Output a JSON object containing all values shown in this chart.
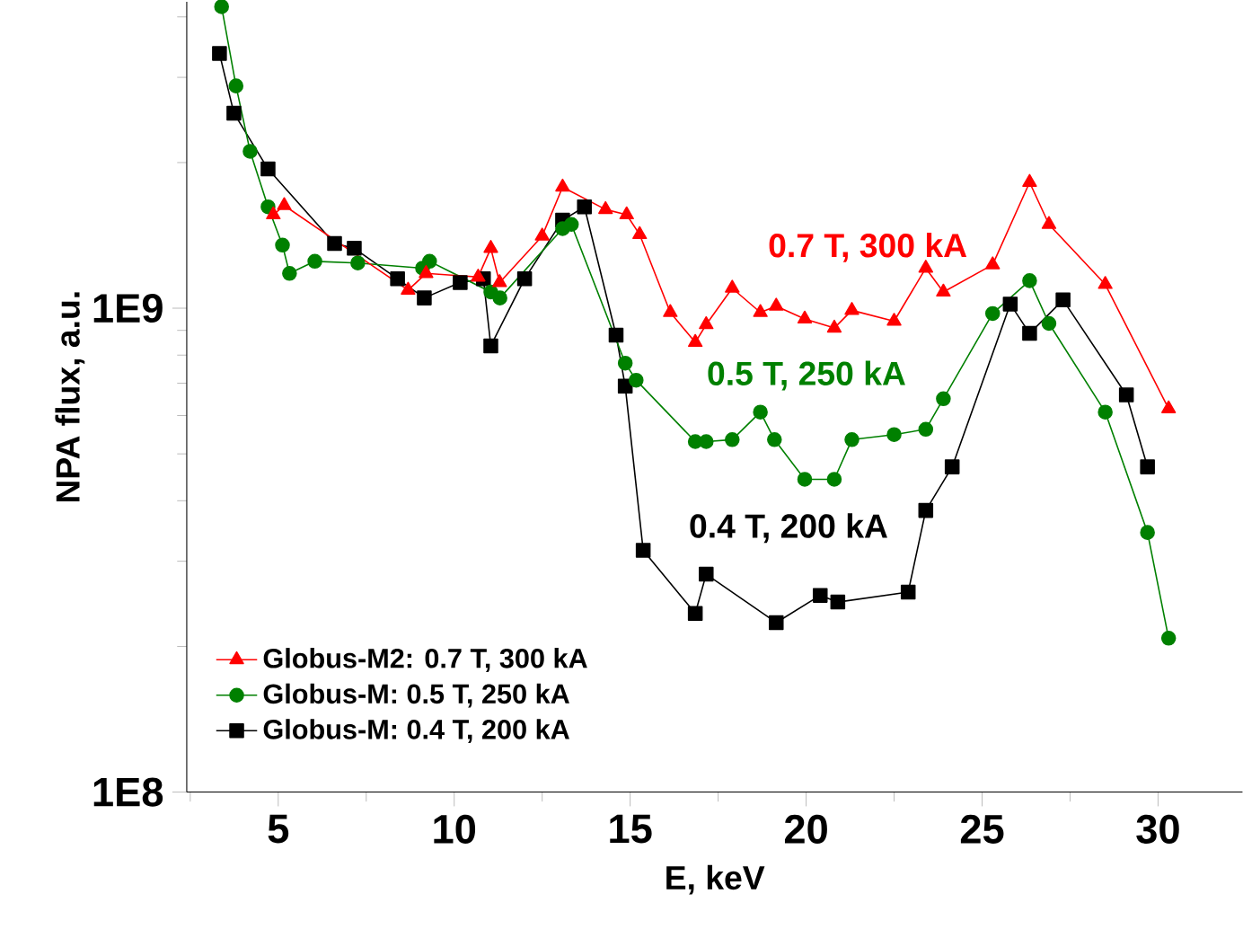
{
  "chart_data": {
    "type": "line",
    "xlabel": "E, keV",
    "ylabel": "NPA flux, a.u.",
    "log": "y",
    "xlim": [
      2.4,
      32.4
    ],
    "ylim": [
      100000000.0,
      4300000000.0
    ],
    "xticks": [
      {
        "value": 2.5,
        "label": null
      },
      5,
      {
        "value": 7.5,
        "label": null
      },
      10,
      {
        "value": 12.5,
        "label": null
      },
      15,
      {
        "value": 17.5,
        "label": null
      },
      20,
      {
        "value": 22.5,
        "label": null
      },
      25,
      {
        "value": 27.5,
        "label": null
      },
      30
    ],
    "yticks": [
      {
        "value": 100000000.0,
        "label": "1E8"
      },
      {
        "value": 200000000.0,
        "label": null
      },
      {
        "value": 300000000.0,
        "label": null
      },
      {
        "value": 400000000.0,
        "label": null
      },
      {
        "value": 500000000.0,
        "label": null
      },
      {
        "value": 600000000.0,
        "label": null
      },
      {
        "value": 700000000.0,
        "label": null
      },
      {
        "value": 800000000.0,
        "label": null
      },
      {
        "value": 900000000.0,
        "label": null
      },
      {
        "value": 1000000000.0,
        "label": "1E9"
      },
      {
        "value": 2000000000.0,
        "label": null
      },
      {
        "value": 3000000000.0,
        "label": null
      },
      {
        "value": 4000000000.0,
        "label": null
      }
    ],
    "legend": "bottom left",
    "grid": false,
    "line_style": "solid",
    "series": [
      {
        "name": "Globus-M2: 0.7 T, 300 kA",
        "color": "#ff0000",
        "marker": "triangle",
        "x": [
          4.86,
          5.17,
          8.69,
          9.2,
          10.68,
          11.04,
          11.29,
          12.5,
          13.08,
          14.3,
          14.9,
          15.27,
          16.14,
          16.85,
          17.16,
          17.9,
          18.7,
          19.15,
          19.96,
          20.8,
          21.3,
          22.5,
          23.4,
          23.9,
          25.3,
          26.35,
          26.9,
          28.5,
          30.3
        ],
        "values": [
          1560000000.0,
          1630000000.0,
          1090000000.0,
          1180000000.0,
          1160000000.0,
          1330000000.0,
          1130000000.0,
          1410000000.0,
          1780000000.0,
          1600000000.0,
          1560000000.0,
          1420000000.0,
          980000000.0,
          850000000.0,
          925000000.0,
          1100000000.0,
          980000000.0,
          1010000000.0,
          950000000.0,
          910000000.0,
          990000000.0,
          940000000.0,
          1210000000.0,
          1080000000.0,
          1230000000.0,
          1820000000.0,
          1490000000.0,
          1120000000.0,
          620000000.0
        ]
      },
      {
        "name": "Globus-M: 0.5 T, 250 kA",
        "color": "#008000",
        "marker": "circle",
        "x": [
          3.39,
          3.8,
          4.2,
          4.71,
          5.12,
          5.32,
          6.04,
          7.26,
          9.1,
          9.3,
          11.04,
          11.3,
          13.08,
          13.33,
          14.86,
          15.17,
          16.85,
          17.16,
          17.9,
          18.7,
          19.1,
          19.96,
          20.8,
          21.3,
          22.5,
          23.4,
          23.9,
          25.3,
          26.35,
          26.9,
          28.5,
          29.7,
          30.3
        ],
        "values": [
          4200000000.0,
          2880000000.0,
          2110000000.0,
          1620000000.0,
          1350000000.0,
          1180000000.0,
          1250000000.0,
          1240000000.0,
          1210000000.0,
          1250000000.0,
          1080000000.0,
          1050000000.0,
          1460000000.0,
          1490000000.0,
          770000000.0,
          710000000.0,
          530000000.0,
          530000000.0,
          535000000.0,
          610000000.0,
          535000000.0,
          443000000.0,
          443000000.0,
          535000000.0,
          548000000.0,
          562000000.0,
          650000000.0,
          975000000.0,
          1140000000.0,
          930000000.0,
          610000000.0,
          344000000.0,
          208000000.0
        ]
      },
      {
        "name": "Globus-M: 0.4 T, 200 kA",
        "color": "#000000",
        "marker": "square",
        "x": [
          3.33,
          3.74,
          4.71,
          6.6,
          7.16,
          8.39,
          9.15,
          10.17,
          10.83,
          11.04,
          12.0,
          13.08,
          13.7,
          14.6,
          14.86,
          15.37,
          16.85,
          17.16,
          19.15,
          20.4,
          20.9,
          22.9,
          23.4,
          24.15,
          25.8,
          26.35,
          27.3,
          29.1,
          29.7
        ],
        "values": [
          3360000000.0,
          2530000000.0,
          1940000000.0,
          1360000000.0,
          1330000000.0,
          1150000000.0,
          1050000000.0,
          1130000000.0,
          1150000000.0,
          836000000.0,
          1150000000.0,
          1520000000.0,
          1620000000.0,
          880000000.0,
          690000000.0,
          316000000.0,
          234000000.0,
          282000000.0,
          224000000.0,
          255000000.0,
          247000000.0,
          259000000.0,
          382000000.0,
          470000000.0,
          1020000000.0,
          887000000.0,
          1040000000.0,
          662000000.0,
          470000000.0
        ]
      }
    ],
    "annotations": [
      "0.7 T, 300 kA",
      "0.5 T, 250 kA",
      "0.4 T, 200 kA"
    ]
  }
}
